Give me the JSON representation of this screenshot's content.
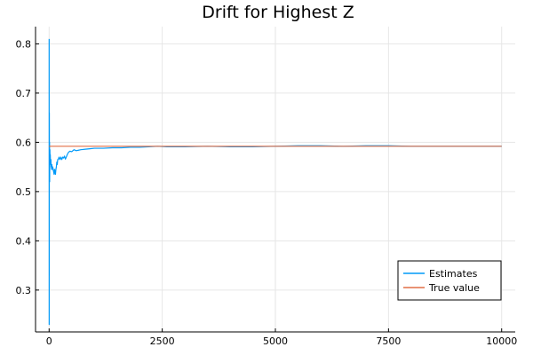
{
  "chart_data": {
    "type": "line",
    "title": "Drift for Highest Z",
    "xlabel": "",
    "ylabel": "",
    "xlim": [
      -300,
      10300
    ],
    "ylim": [
      0.215,
      0.835
    ],
    "xticks": [
      0,
      2500,
      5000,
      7500,
      10000
    ],
    "xtick_labels": [
      "0",
      "2500",
      "5000",
      "7500",
      "10000"
    ],
    "yticks": [
      0.3,
      0.4,
      0.5,
      0.6,
      0.7,
      0.8
    ],
    "ytick_labels": [
      "0.3",
      "0.4",
      "0.5",
      "0.6",
      "0.7",
      "0.8"
    ],
    "grid": true,
    "legend_position": "bottom-right",
    "series": [
      {
        "name": "Estimates",
        "color": "#009af9",
        "x": [
          1,
          2,
          3,
          4,
          5,
          6,
          8,
          10,
          12,
          15,
          18,
          22,
          26,
          30,
          35,
          40,
          45,
          50,
          55,
          60,
          70,
          80,
          90,
          100,
          110,
          120,
          130,
          140,
          150,
          160,
          170,
          180,
          190,
          200,
          220,
          240,
          260,
          280,
          300,
          320,
          340,
          360,
          380,
          400,
          430,
          460,
          500,
          550,
          600,
          650,
          700,
          800,
          900,
          1000,
          1200,
          1400,
          1600,
          1800,
          2000,
          2200,
          2400,
          2600,
          3000,
          3500,
          4000,
          4500,
          5000,
          5500,
          6000,
          6500,
          7000,
          7500,
          8000,
          8500,
          9000,
          9500,
          10000
        ],
        "y": [
          0.81,
          0.23,
          0.6,
          0.33,
          0.66,
          0.58,
          0.55,
          0.6,
          0.52,
          0.57,
          0.585,
          0.555,
          0.575,
          0.56,
          0.555,
          0.565,
          0.55,
          0.555,
          0.545,
          0.555,
          0.545,
          0.55,
          0.545,
          0.54,
          0.535,
          0.545,
          0.54,
          0.535,
          0.545,
          0.55,
          0.56,
          0.555,
          0.565,
          0.565,
          0.57,
          0.565,
          0.57,
          0.565,
          0.57,
          0.568,
          0.572,
          0.566,
          0.57,
          0.575,
          0.58,
          0.582,
          0.581,
          0.585,
          0.583,
          0.584,
          0.585,
          0.586,
          0.587,
          0.588,
          0.588,
          0.589,
          0.589,
          0.59,
          0.59,
          0.591,
          0.592,
          0.591,
          0.591,
          0.592,
          0.591,
          0.591,
          0.592,
          0.593,
          0.593,
          0.592,
          0.593,
          0.593,
          0.592,
          0.592,
          0.592,
          0.592,
          0.592
        ]
      },
      {
        "name": "True value",
        "color": "#e26f46",
        "x": [
          0,
          10000
        ],
        "y": [
          0.592,
          0.592
        ]
      }
    ]
  }
}
